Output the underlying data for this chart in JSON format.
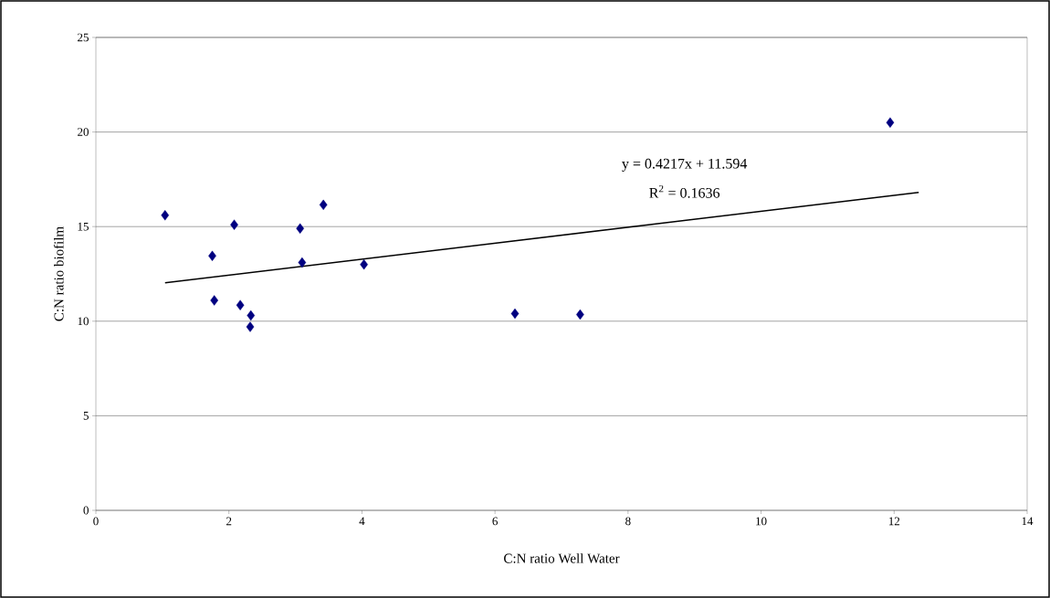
{
  "chart_data": {
    "type": "scatter",
    "xlabel": "C:N ratio Well Water",
    "ylabel": "C:N ratio biofilm",
    "xlim": [
      0,
      14
    ],
    "xticks": [
      0,
      2,
      4,
      6,
      8,
      10,
      12,
      14
    ],
    "ylim": [
      0,
      25
    ],
    "yticks": [
      0,
      5,
      10,
      15,
      20,
      25
    ],
    "grid": "y",
    "annotations": [
      "y = 0.4217x + 11.594",
      "R$^{2}$ = 0.1636"
    ],
    "series": [
      {
        "color": "#000080",
        "marker": "diamond",
        "x": [
          1.04,
          1.75,
          1.78,
          2.08,
          2.17,
          2.33,
          2.32,
          3.07,
          3.1,
          3.42,
          4.03,
          6.3,
          7.28,
          11.94
        ],
        "values": [
          15.6,
          13.45,
          11.1,
          15.1,
          10.85,
          10.3,
          9.7,
          14.9,
          13.1,
          16.15,
          13.0,
          10.4,
          10.35,
          20.5
        ]
      },
      {
        "type": "line",
        "color": "#000000",
        "marker": "none",
        "x": [
          1.04,
          12.37
        ],
        "values": [
          12.03,
          16.81
        ]
      }
    ]
  }
}
